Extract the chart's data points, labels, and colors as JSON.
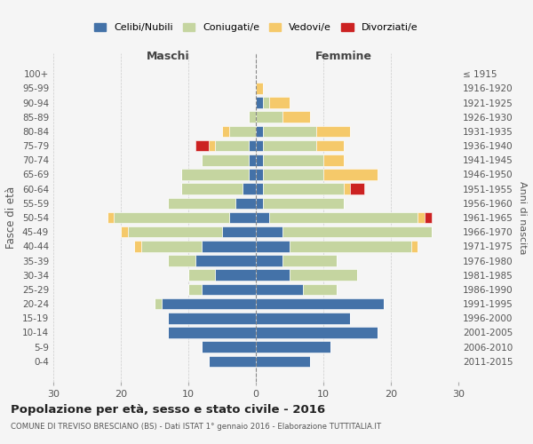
{
  "age_groups": [
    "0-4",
    "5-9",
    "10-14",
    "15-19",
    "20-24",
    "25-29",
    "30-34",
    "35-39",
    "40-44",
    "45-49",
    "50-54",
    "55-59",
    "60-64",
    "65-69",
    "70-74",
    "75-79",
    "80-84",
    "85-89",
    "90-94",
    "95-99",
    "100+"
  ],
  "birth_years": [
    "2011-2015",
    "2006-2010",
    "2001-2005",
    "1996-2000",
    "1991-1995",
    "1986-1990",
    "1981-1985",
    "1976-1980",
    "1971-1975",
    "1966-1970",
    "1961-1965",
    "1956-1960",
    "1951-1955",
    "1946-1950",
    "1941-1945",
    "1936-1940",
    "1931-1935",
    "1926-1930",
    "1921-1925",
    "1916-1920",
    "≤ 1915"
  ],
  "colors": {
    "celibi": "#4472a8",
    "coniugati": "#c5d5a0",
    "vedovi": "#f5c96a",
    "divorziati": "#cc2222"
  },
  "maschi": {
    "celibi": [
      7,
      8,
      13,
      13,
      14,
      8,
      6,
      9,
      8,
      5,
      4,
      3,
      2,
      1,
      1,
      1,
      0,
      0,
      0,
      0,
      0
    ],
    "coniugati": [
      0,
      0,
      0,
      0,
      1,
      2,
      4,
      4,
      9,
      14,
      17,
      10,
      9,
      10,
      7,
      5,
      4,
      1,
      0,
      0,
      0
    ],
    "vedovi": [
      0,
      0,
      0,
      0,
      0,
      0,
      0,
      0,
      1,
      1,
      1,
      0,
      0,
      0,
      0,
      1,
      1,
      0,
      0,
      0,
      0
    ],
    "divorziati": [
      0,
      0,
      0,
      0,
      0,
      0,
      0,
      0,
      0,
      0,
      0,
      0,
      0,
      0,
      0,
      2,
      0,
      0,
      0,
      0,
      0
    ]
  },
  "femmine": {
    "celibi": [
      8,
      11,
      18,
      14,
      19,
      7,
      5,
      4,
      5,
      4,
      2,
      1,
      1,
      1,
      1,
      1,
      1,
      0,
      1,
      0,
      0
    ],
    "coniugati": [
      0,
      0,
      0,
      0,
      0,
      5,
      10,
      8,
      18,
      22,
      22,
      12,
      12,
      9,
      9,
      8,
      8,
      4,
      1,
      0,
      0
    ],
    "vedovi": [
      0,
      0,
      0,
      0,
      0,
      0,
      0,
      0,
      1,
      0,
      1,
      0,
      1,
      8,
      3,
      4,
      5,
      4,
      3,
      1,
      0
    ],
    "divorziati": [
      0,
      0,
      0,
      0,
      0,
      0,
      0,
      0,
      0,
      0,
      1,
      0,
      2,
      0,
      0,
      0,
      0,
      0,
      0,
      0,
      0
    ]
  },
  "xlim": 30,
  "title": "Popolazione per età, sesso e stato civile - 2016",
  "subtitle": "COMUNE DI TREVISO BRESCIANO (BS) - Dati ISTAT 1° gennaio 2016 - Elaborazione TUTTITALIA.IT",
  "ylabel_left": "Fasce di età",
  "ylabel_right": "Anni di nascita",
  "legend_labels": [
    "Celibi/Nubili",
    "Coniugati/e",
    "Vedovi/e",
    "Divorziati/e"
  ],
  "background_color": "#f5f5f5"
}
